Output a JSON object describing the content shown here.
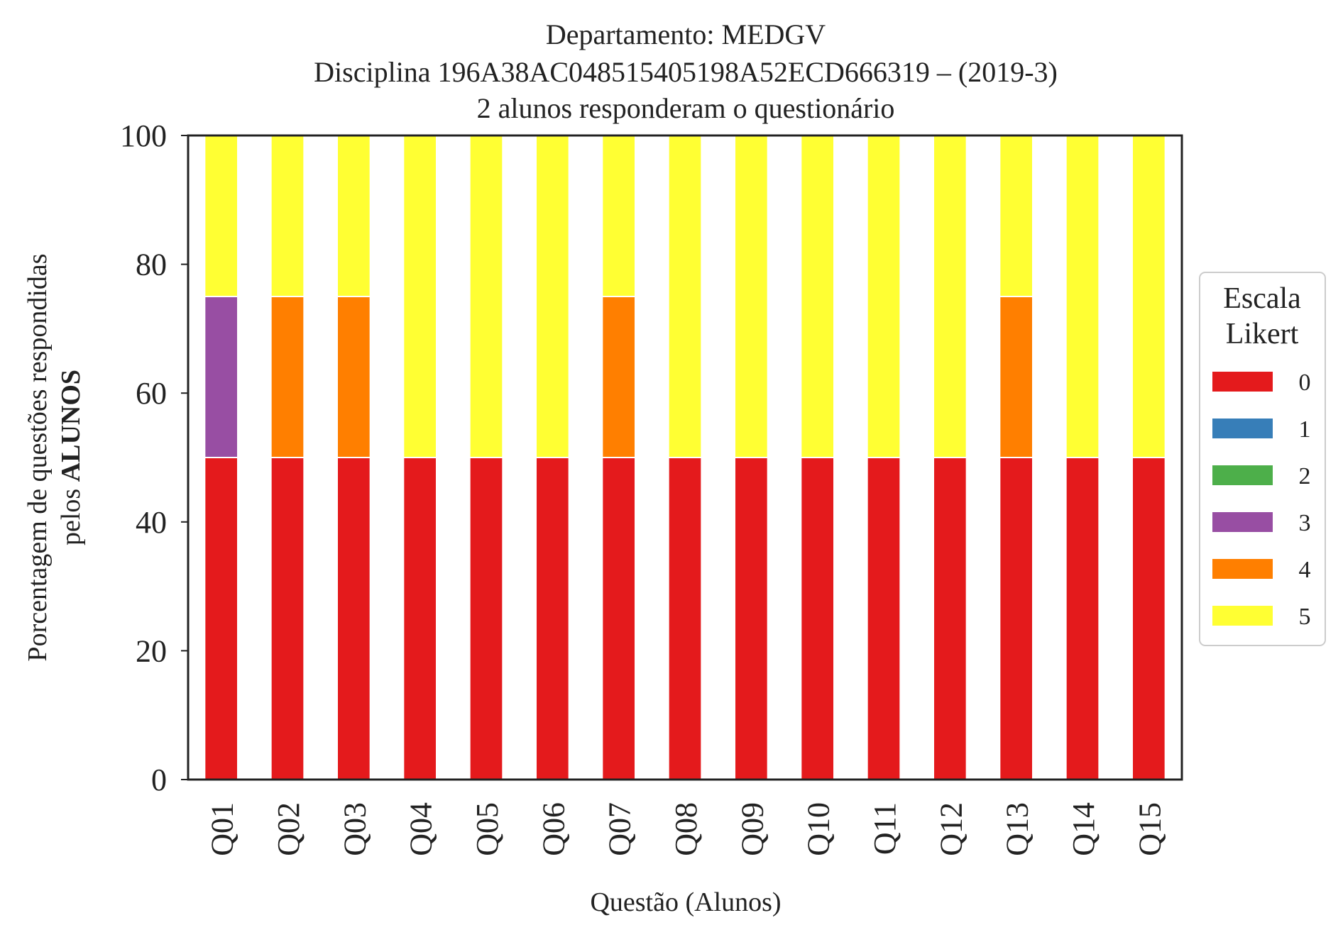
{
  "chart_data": {
    "type": "bar",
    "stacked": true,
    "title_lines": [
      "Departamento: MEDGV",
      "Disciplina 196A38AC048515405198A52ECD666319 – (2019-3)",
      "2 alunos responderam o questionário"
    ],
    "xlabel": "Questão (Alunos)",
    "ylabel_line1": "Porcentagem de questões respondidas",
    "ylabel_line2_prefix": "pelos ",
    "ylabel_line2_bold": "ALUNOS",
    "ylim": [
      0,
      100
    ],
    "yticks": [
      "0",
      "20",
      "40",
      "60",
      "80",
      "100"
    ],
    "categories": [
      "Q01",
      "Q02",
      "Q03",
      "Q04",
      "Q05",
      "Q06",
      "Q07",
      "Q08",
      "Q09",
      "Q10",
      "Q11",
      "Q12",
      "Q13",
      "Q14",
      "Q15"
    ],
    "legend": {
      "title_line1": "Escala",
      "title_line2": "Likert",
      "placement": "right"
    },
    "series": [
      {
        "name": "0",
        "color": "#e41a1c",
        "values": [
          50,
          50,
          50,
          50,
          50,
          50,
          50,
          50,
          50,
          50,
          50,
          50,
          50,
          50,
          50
        ]
      },
      {
        "name": "1",
        "color": "#377eb8",
        "values": [
          0,
          0,
          0,
          0,
          0,
          0,
          0,
          0,
          0,
          0,
          0,
          0,
          0,
          0,
          0
        ]
      },
      {
        "name": "2",
        "color": "#4daf4a",
        "values": [
          0,
          0,
          0,
          0,
          0,
          0,
          0,
          0,
          0,
          0,
          0,
          0,
          0,
          0,
          0
        ]
      },
      {
        "name": "3",
        "color": "#984ea3",
        "values": [
          25,
          0,
          0,
          0,
          0,
          0,
          0,
          0,
          0,
          0,
          0,
          0,
          0,
          0,
          0
        ]
      },
      {
        "name": "4",
        "color": "#ff7f00",
        "values": [
          0,
          25,
          25,
          0,
          0,
          0,
          25,
          0,
          0,
          0,
          0,
          0,
          25,
          0,
          0
        ]
      },
      {
        "name": "5",
        "color": "#ffff33",
        "values": [
          25,
          25,
          25,
          50,
          50,
          50,
          25,
          50,
          50,
          50,
          50,
          50,
          25,
          50,
          50
        ]
      }
    ]
  }
}
